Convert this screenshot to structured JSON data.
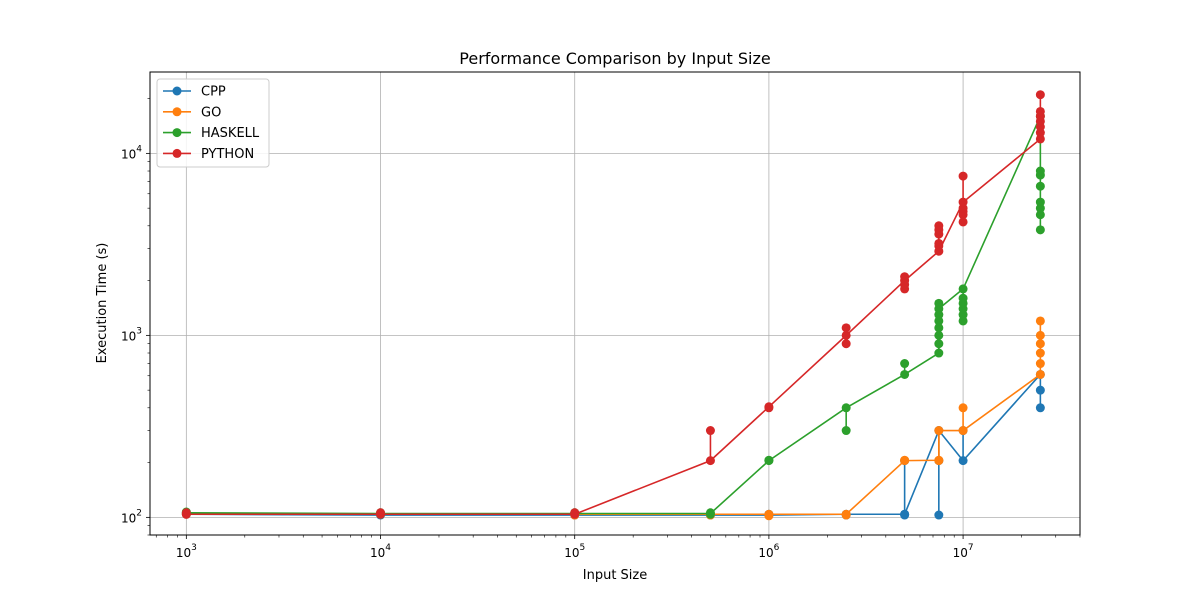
{
  "chart_data": {
    "type": "line",
    "title": "Performance Comparison by Input Size",
    "xlabel": "Input Size",
    "ylabel": "Execution Time (s)",
    "xscale": "log",
    "yscale": "log",
    "xlim": [
      650,
      40000000
    ],
    "ylim": [
      80,
      28000
    ],
    "grid": true,
    "legend_position": "top-left",
    "x_ticks": [
      {
        "value": 1000,
        "base": "10",
        "exp": "3"
      },
      {
        "value": 10000,
        "base": "10",
        "exp": "4"
      },
      {
        "value": 100000,
        "base": "10",
        "exp": "5"
      },
      {
        "value": 1000000,
        "base": "10",
        "exp": "6"
      },
      {
        "value": 10000000,
        "base": "10",
        "exp": "7"
      }
    ],
    "y_ticks": [
      {
        "value": 100,
        "base": "10",
        "exp": "2"
      },
      {
        "value": 1000,
        "base": "10",
        "exp": "3"
      },
      {
        "value": 10000,
        "base": "10",
        "exp": "4"
      }
    ],
    "series": [
      {
        "name": "CPP",
        "color": "#1f77b4",
        "points": [
          [
            1000,
            104
          ],
          [
            1000,
            106
          ],
          [
            10000,
            103
          ],
          [
            10000,
            105
          ],
          [
            100000,
            103
          ],
          [
            100000,
            104
          ],
          [
            500000,
            103
          ],
          [
            500000,
            104
          ],
          [
            1000000,
            103
          ],
          [
            1000000,
            104
          ],
          [
            2500000,
            103
          ],
          [
            2500000,
            104
          ],
          [
            5000000,
            104
          ],
          [
            5000000,
            104
          ],
          [
            5000000,
            103
          ],
          [
            5000000,
            205
          ],
          [
            7500000,
            103
          ],
          [
            7500000,
            205
          ],
          [
            7500000,
            300
          ],
          [
            10000000,
            205
          ],
          [
            10000000,
            300
          ],
          [
            25000000,
            610
          ],
          [
            25000000,
            500
          ],
          [
            25000000,
            400
          ]
        ],
        "line": [
          [
            1000,
            104
          ],
          [
            10000,
            103
          ],
          [
            100000,
            103
          ],
          [
            500000,
            103
          ],
          [
            1000000,
            103
          ],
          [
            2500000,
            104
          ],
          [
            5000000,
            104
          ],
          [
            7500000,
            300
          ],
          [
            10000000,
            205
          ],
          [
            25000000,
            610
          ]
        ]
      },
      {
        "name": "GO",
        "color": "#ff7f0e",
        "points": [
          [
            1000,
            104
          ],
          [
            1000,
            105
          ],
          [
            10000,
            104
          ],
          [
            100000,
            104
          ],
          [
            100000,
            103
          ],
          [
            500000,
            104
          ],
          [
            500000,
            103
          ],
          [
            1000000,
            104
          ],
          [
            1000000,
            102
          ],
          [
            2500000,
            104
          ],
          [
            2500000,
            103
          ],
          [
            5000000,
            205
          ],
          [
            5000000,
            206
          ],
          [
            7500000,
            205
          ],
          [
            7500000,
            206
          ],
          [
            7500000,
            300
          ],
          [
            10000000,
            300
          ],
          [
            10000000,
            400
          ],
          [
            25000000,
            610
          ],
          [
            25000000,
            700
          ],
          [
            25000000,
            800
          ],
          [
            25000000,
            900
          ],
          [
            25000000,
            1000
          ],
          [
            25000000,
            1200
          ]
        ],
        "line": [
          [
            1000,
            104
          ],
          [
            10000,
            104
          ],
          [
            100000,
            104
          ],
          [
            500000,
            104
          ],
          [
            1000000,
            104
          ],
          [
            2500000,
            104
          ],
          [
            5000000,
            205
          ],
          [
            7500000,
            206
          ],
          [
            7500000,
            300
          ],
          [
            10000000,
            300
          ],
          [
            25000000,
            610
          ]
        ]
      },
      {
        "name": "HASKELL",
        "color": "#2ca02c",
        "points": [
          [
            1000,
            105
          ],
          [
            1000,
            107
          ],
          [
            10000,
            104
          ],
          [
            10000,
            106
          ],
          [
            100000,
            105
          ],
          [
            100000,
            106
          ],
          [
            500000,
            104
          ],
          [
            500000,
            106
          ],
          [
            1000000,
            205
          ],
          [
            1000000,
            206
          ],
          [
            2500000,
            300
          ],
          [
            2500000,
            400
          ],
          [
            5000000,
            610
          ],
          [
            5000000,
            700
          ],
          [
            7500000,
            800
          ],
          [
            7500000,
            900
          ],
          [
            7500000,
            1000
          ],
          [
            7500000,
            1100
          ],
          [
            7500000,
            1200
          ],
          [
            7500000,
            1300
          ],
          [
            7500000,
            1400
          ],
          [
            7500000,
            1500
          ],
          [
            10000000,
            1200
          ],
          [
            10000000,
            1300
          ],
          [
            10000000,
            1400
          ],
          [
            10000000,
            1500
          ],
          [
            10000000,
            1600
          ],
          [
            10000000,
            1800
          ],
          [
            25000000,
            3800
          ],
          [
            25000000,
            4600
          ],
          [
            25000000,
            5000
          ],
          [
            25000000,
            5400
          ],
          [
            25000000,
            6600
          ],
          [
            25000000,
            7600
          ],
          [
            25000000,
            8000
          ],
          [
            25000000,
            16000
          ]
        ],
        "line": [
          [
            1000,
            106
          ],
          [
            10000,
            105
          ],
          [
            100000,
            105
          ],
          [
            500000,
            105
          ],
          [
            1000000,
            205
          ],
          [
            2500000,
            400
          ],
          [
            5000000,
            610
          ],
          [
            7500000,
            800
          ],
          [
            7500000,
            1400
          ],
          [
            10000000,
            1800
          ],
          [
            25000000,
            16000
          ]
        ]
      },
      {
        "name": "PYTHON",
        "color": "#d62728",
        "points": [
          [
            1000,
            104
          ],
          [
            1000,
            106
          ],
          [
            10000,
            104
          ],
          [
            10000,
            106
          ],
          [
            100000,
            104
          ],
          [
            100000,
            106
          ],
          [
            500000,
            205
          ],
          [
            500000,
            300
          ],
          [
            1000000,
            400
          ],
          [
            1000000,
            405
          ],
          [
            2500000,
            900
          ],
          [
            2500000,
            1000
          ],
          [
            2500000,
            1100
          ],
          [
            5000000,
            1800
          ],
          [
            5000000,
            1900
          ],
          [
            5000000,
            2000
          ],
          [
            5000000,
            2100
          ],
          [
            7500000,
            2900
          ],
          [
            7500000,
            3100
          ],
          [
            7500000,
            3200
          ],
          [
            7500000,
            3600
          ],
          [
            7500000,
            3800
          ],
          [
            7500000,
            4000
          ],
          [
            10000000,
            4200
          ],
          [
            10000000,
            4600
          ],
          [
            10000000,
            4800
          ],
          [
            10000000,
            5000
          ],
          [
            10000000,
            5400
          ],
          [
            10000000,
            7500
          ],
          [
            25000000,
            12000
          ],
          [
            25000000,
            13000
          ],
          [
            25000000,
            14000
          ],
          [
            25000000,
            15000
          ],
          [
            25000000,
            16000
          ],
          [
            25000000,
            17000
          ],
          [
            25000000,
            21000
          ]
        ],
        "line": [
          [
            1000,
            104
          ],
          [
            10000,
            104
          ],
          [
            100000,
            104
          ],
          [
            500000,
            205
          ],
          [
            1000000,
            405
          ],
          [
            2500000,
            1000
          ],
          [
            5000000,
            2000
          ],
          [
            7500000,
            2900
          ],
          [
            10000000,
            5400
          ],
          [
            25000000,
            12000
          ]
        ]
      }
    ]
  }
}
